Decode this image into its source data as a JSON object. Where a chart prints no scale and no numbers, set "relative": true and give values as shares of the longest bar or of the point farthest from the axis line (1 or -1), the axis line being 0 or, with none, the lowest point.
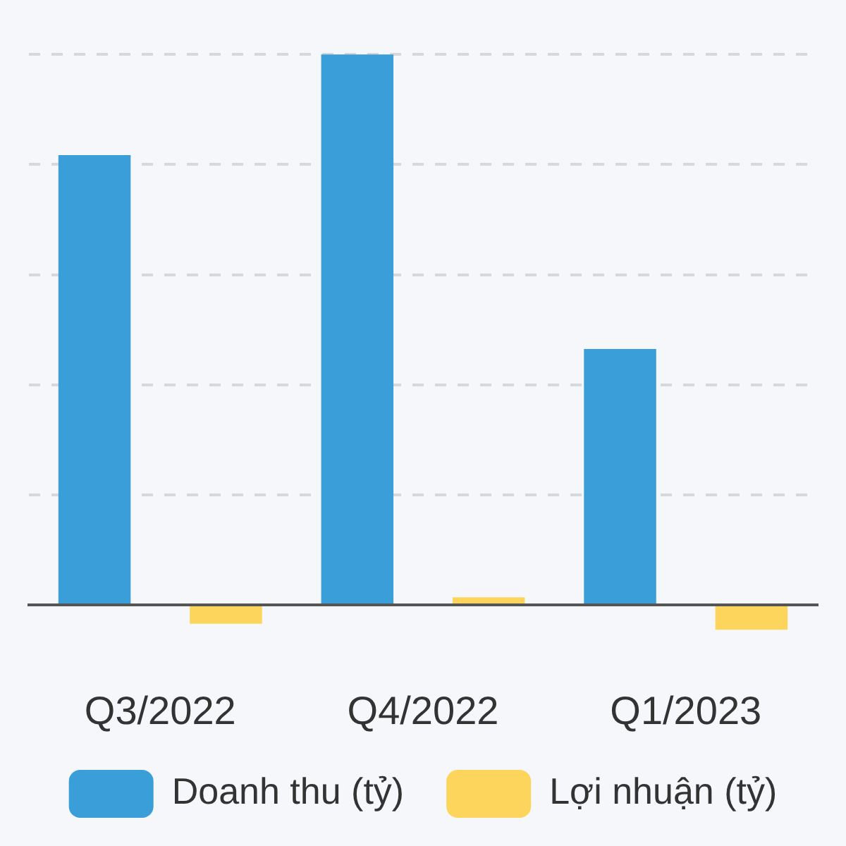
{
  "chart_data": {
    "type": "bar",
    "relative": true,
    "categories": [
      "Q3/2022",
      "Q4/2022",
      "Q1/2023"
    ],
    "series": [
      {
        "name": "Doanh thu (tỷ)",
        "color": "#3a9fd8",
        "values": [
          0.817,
          1,
          0.465
        ]
      },
      {
        "name": "Lợi nhuận (tỷ)",
        "color": "#fdd55c",
        "values": [
          -0.034,
          0.014,
          -0.045
        ]
      }
    ],
    "grid": "y",
    "legend": "bottom"
  }
}
